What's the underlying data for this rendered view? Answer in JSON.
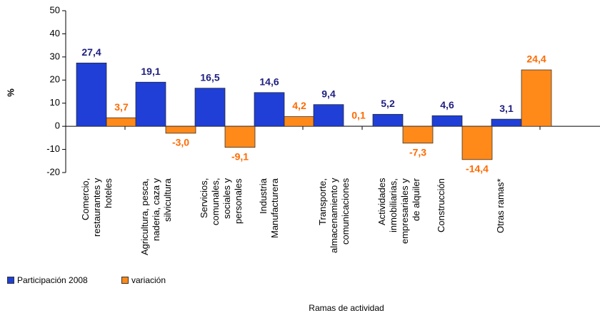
{
  "chart_data": {
    "type": "bar",
    "x_label": "Ramas de actividad",
    "y_label": "%",
    "categories": [
      "Comercio, restaurantes y hoteles",
      "Agricultura, pesca, naderia, caza y silvicultura",
      "Servicios, comunales, sociales y personales",
      "Industria Manufacturera",
      "Transporte, almacenamiento y comunicaciones",
      "Actividades inmobiliarias, empresariales y de alquiler",
      "Construcción",
      "Otras ramas*"
    ],
    "series": [
      {
        "name": "Participación 2008",
        "color": "#1f3fd6",
        "label_color": "#1f1f80",
        "values": [
          27.4,
          19.1,
          16.5,
          14.6,
          9.4,
          5.2,
          4.6,
          3.1
        ],
        "value_labels": [
          "27,4",
          "19,1",
          "16,5",
          "14,6",
          "9,4",
          "5,2",
          "4,6",
          "3,1"
        ]
      },
      {
        "name": "variación",
        "color": "#ff8a1a",
        "label_color": "#ff6a00",
        "values": [
          3.7,
          -3.0,
          -9.1,
          4.2,
          0.1,
          -7.3,
          -14.4,
          24.4
        ],
        "value_labels": [
          "3,7",
          "-3,0",
          "-9,1",
          "4,2",
          "0,1",
          "-7,3",
          "-14,4",
          "24,4"
        ]
      }
    ],
    "ylim": [
      -20,
      50
    ],
    "yticks": [
      -20,
      -10,
      0,
      10,
      20,
      30,
      40,
      50
    ]
  }
}
